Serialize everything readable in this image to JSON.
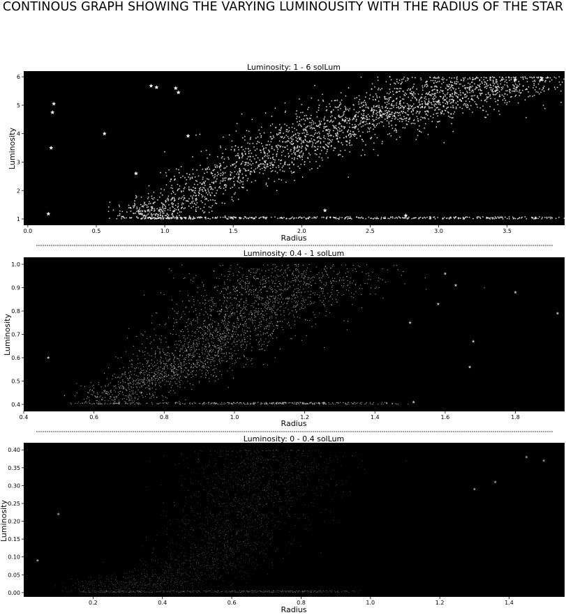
{
  "title": "CONTINOUS GRAPH SHOWING THE VARYING LUMINOUSITY WITH THE RADIUS OF THE STAR",
  "colors": {
    "background": "#000000",
    "panel1_points": "#efefef",
    "panel2_points": "#bdbdbd",
    "panel3_points": "#8e8e8e",
    "separator": "#000000"
  },
  "chart_data": [
    {
      "type": "scatter",
      "title": "Luminosity: 1 - 6 solLum",
      "xlabel": "Radius",
      "ylabel": "Luminosity",
      "xlim": [
        -0.03,
        3.92
      ],
      "ylim": [
        0.78,
        6.2
      ],
      "xticks": [
        "0.0",
        "0.5",
        "1.0",
        "1.5",
        "2.0",
        "2.5",
        "3.0",
        "3.5"
      ],
      "yticks": [
        "1",
        "2",
        "3",
        "4",
        "5",
        "6"
      ],
      "marker": "star",
      "main_trend": [
        [
          0.8,
          1.0
        ],
        [
          1.0,
          1.3
        ],
        [
          1.5,
          2.6
        ],
        [
          2.0,
          3.7
        ],
        [
          2.5,
          4.6
        ],
        [
          3.0,
          5.3
        ],
        [
          3.5,
          5.9
        ]
      ],
      "outliers": [
        [
          0.15,
          1.18
        ],
        [
          0.17,
          3.5
        ],
        [
          0.18,
          4.75
        ],
        [
          0.19,
          5.05
        ],
        [
          0.56,
          4.0
        ],
        [
          0.79,
          2.6
        ],
        [
          0.9,
          5.68
        ],
        [
          0.94,
          5.63
        ],
        [
          1.08,
          5.6
        ],
        [
          1.1,
          5.45
        ],
        [
          1.17,
          3.92
        ],
        [
          2.17,
          1.3
        ],
        [
          2.76,
          1.12
        ],
        [
          3.75,
          5.9
        ],
        [
          3.56,
          5.9
        ]
      ]
    },
    {
      "type": "scatter",
      "title": "Luminosity: 0.4 - 1 solLum",
      "xlabel": "Radius",
      "ylabel": "Luminosity",
      "xlim": [
        0.4,
        1.94
      ],
      "ylim": [
        0.37,
        1.03
      ],
      "xticks": [
        "0.4",
        "0.6",
        "0.8",
        "1.0",
        "1.2",
        "1.4",
        "1.6",
        "1.8"
      ],
      "yticks": [
        "0.4",
        "0.5",
        "0.6",
        "0.7",
        "0.8",
        "0.9",
        "1.0"
      ],
      "marker": "star",
      "main_trend": [
        [
          0.6,
          0.4
        ],
        [
          0.8,
          0.52
        ],
        [
          0.9,
          0.62
        ],
        [
          1.0,
          0.75
        ],
        [
          1.1,
          0.87
        ],
        [
          1.2,
          0.98
        ]
      ],
      "outliers": [
        [
          0.47,
          0.6
        ],
        [
          1.51,
          0.41
        ],
        [
          1.6,
          0.96
        ],
        [
          1.63,
          0.91
        ],
        [
          1.67,
          0.56
        ],
        [
          1.68,
          0.67
        ],
        [
          1.8,
          0.88
        ],
        [
          1.92,
          0.79
        ],
        [
          1.58,
          0.83
        ],
        [
          1.5,
          0.75
        ]
      ]
    },
    {
      "type": "scatter",
      "title": "Luminosity: 0 - 0.4 solLum",
      "xlabel": "Radius",
      "ylabel": "Luminosity",
      "xlim": [
        0.0,
        1.56
      ],
      "ylim": [
        -0.012,
        0.42
      ],
      "xticks": [
        "0.2",
        "0.4",
        "0.6",
        "0.8",
        "1.0",
        "1.2",
        "1.4"
      ],
      "yticks": [
        "0.00",
        "0.05",
        "0.10",
        "0.15",
        "0.20",
        "0.25",
        "0.30",
        "0.35",
        "0.40"
      ],
      "marker": "star",
      "main_trend": [
        [
          0.15,
          0.0
        ],
        [
          0.3,
          0.01
        ],
        [
          0.45,
          0.04
        ],
        [
          0.55,
          0.1
        ],
        [
          0.62,
          0.2
        ],
        [
          0.67,
          0.3
        ],
        [
          0.72,
          0.4
        ]
      ],
      "outliers": [
        [
          0.04,
          0.09
        ],
        [
          0.1,
          0.22
        ],
        [
          1.45,
          0.38
        ],
        [
          1.5,
          0.37
        ],
        [
          1.36,
          0.31
        ],
        [
          1.3,
          0.29
        ]
      ]
    }
  ]
}
